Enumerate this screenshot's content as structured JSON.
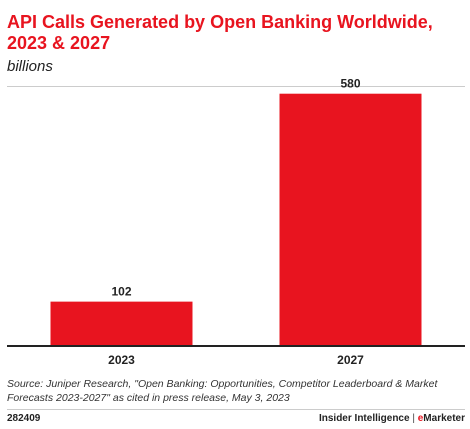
{
  "header": {
    "title": "API Calls Generated by Open Banking Worldwide, 2023 & 2027",
    "subtitle": "billions"
  },
  "chart_data": {
    "type": "bar",
    "title": "API Calls Generated by Open Banking Worldwide, 2023 & 2027",
    "subtitle": "billions",
    "categories": [
      "2023",
      "2027"
    ],
    "values": [
      102,
      580
    ],
    "ylim": [
      0,
      600
    ],
    "grid": false,
    "legend": "none",
    "bar_color": "#e8141f"
  },
  "footer": {
    "source": "Source: Juniper Research, \"Open Banking: Opportunities, Competitor Leaderboard & Market Forecasts 2023-2027\" as cited in press release, May 3, 2023",
    "id": "282409",
    "brand_main": "Insider Intelligence",
    "brand_sep": "|",
    "brand_e": "e",
    "brand_rest": "Marketer"
  },
  "colors": {
    "accent": "#e8141f",
    "text": "#222222"
  }
}
